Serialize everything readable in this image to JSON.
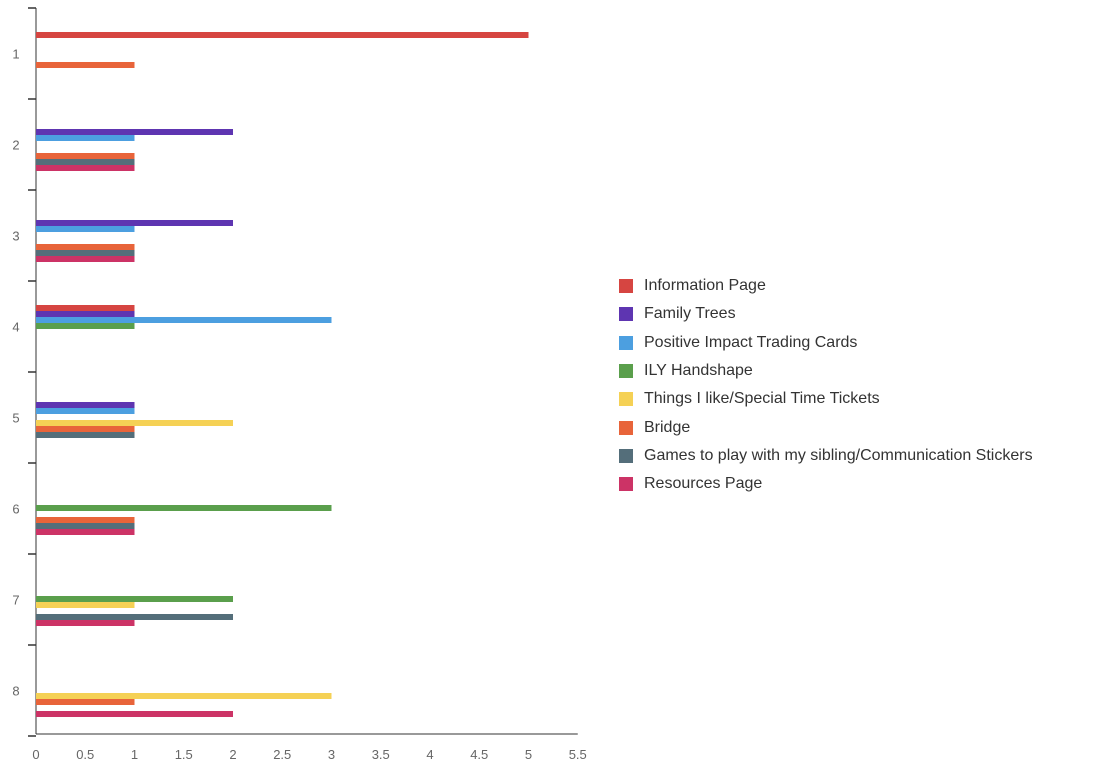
{
  "chart_data": {
    "type": "bar",
    "orientation": "horizontal",
    "categories": [
      "1",
      "2",
      "3",
      "4",
      "5",
      "6",
      "7",
      "8"
    ],
    "series": [
      {
        "name": "Information Page",
        "color": "#d64541",
        "values": [
          5,
          0,
          0,
          1,
          0,
          0,
          0,
          0
        ]
      },
      {
        "name": "Family Trees",
        "color": "#5e35b1",
        "values": [
          0,
          2,
          2,
          1,
          1,
          0,
          0,
          0
        ]
      },
      {
        "name": "Positive Impact Trading Cards",
        "color": "#4c9fe0",
        "values": [
          0,
          1,
          1,
          3,
          1,
          0,
          0,
          0
        ]
      },
      {
        "name": "ILY Handshape",
        "color": "#5a9f4c",
        "values": [
          0,
          0,
          0,
          1,
          0,
          3,
          2,
          0
        ]
      },
      {
        "name": "Things I like/Special Time Tickets",
        "color": "#f5d155",
        "values": [
          0,
          0,
          0,
          0,
          2,
          0,
          1,
          3
        ]
      },
      {
        "name": "Bridge",
        "color": "#e8643a",
        "values": [
          1,
          1,
          1,
          0,
          1,
          1,
          0,
          1
        ]
      },
      {
        "name": "Games to play with my sibling/Communication Stickers",
        "color": "#546e7a",
        "values": [
          0,
          1,
          1,
          0,
          1,
          1,
          2,
          0
        ]
      },
      {
        "name": "Resources Page",
        "color": "#cc3366",
        "values": [
          0,
          1,
          1,
          0,
          0,
          1,
          1,
          2
        ]
      }
    ],
    "xlim": [
      0,
      5.5
    ],
    "xticks": [
      "0",
      "0.5",
      "1",
      "1.5",
      "2",
      "2.5",
      "3",
      "3.5",
      "4",
      "4.5",
      "5",
      "5.5"
    ],
    "title": "",
    "xlabel": "",
    "ylabel": "",
    "legend_position": "right",
    "grid": false
  }
}
